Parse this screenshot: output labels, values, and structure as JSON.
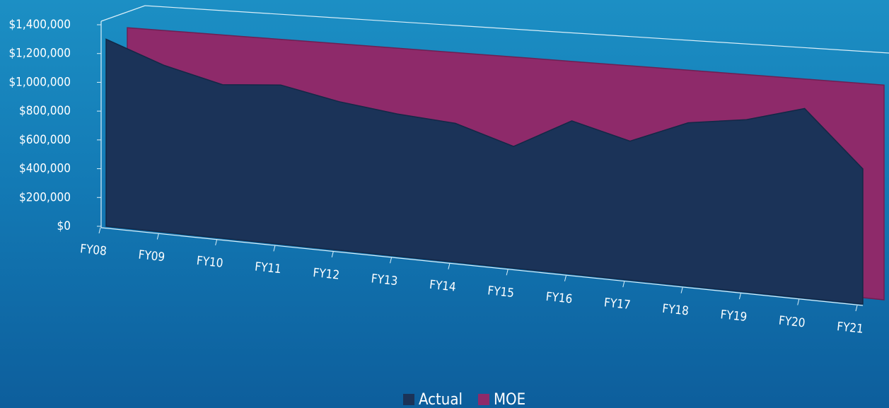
{
  "chart_data": {
    "type": "area",
    "categories": [
      "FY08",
      "FY09",
      "FY10",
      "FY11",
      "FY12",
      "FY13",
      "FY14",
      "FY15",
      "FY16",
      "FY17",
      "FY18",
      "FY19",
      "FY20",
      "FY21"
    ],
    "series": [
      {
        "name": "Actual",
        "color": "#1b3358",
        "values": [
          1300000,
          1150000,
          1050000,
          1080000,
          1000000,
          950000,
          920000,
          800000,
          1000000,
          900000,
          1050000,
          1100000,
          1200000,
          850000
        ]
      },
      {
        "name": "MOE",
        "color": "#8e2a6a",
        "values": [
          1350000,
          1350000,
          1350000,
          1350000,
          1350000,
          1350000,
          1350000,
          1350000,
          1350000,
          1350000,
          1350000,
          1350000,
          1350000,
          1350000
        ]
      }
    ],
    "ylim": [
      0,
      1400000
    ],
    "yticks": [
      {
        "value": 0,
        "label": "$0"
      },
      {
        "value": 200000,
        "label": "$200,000"
      },
      {
        "value": 400000,
        "label": "$400,000"
      },
      {
        "value": 600000,
        "label": "$600,000"
      },
      {
        "value": 800000,
        "label": "$800,000"
      },
      {
        "value": 1000000,
        "label": "$1,000,000"
      },
      {
        "value": 1200000,
        "label": "$1,200,000"
      },
      {
        "value": 1400000,
        "label": "$1,400,000"
      }
    ],
    "legend": "bottom"
  }
}
